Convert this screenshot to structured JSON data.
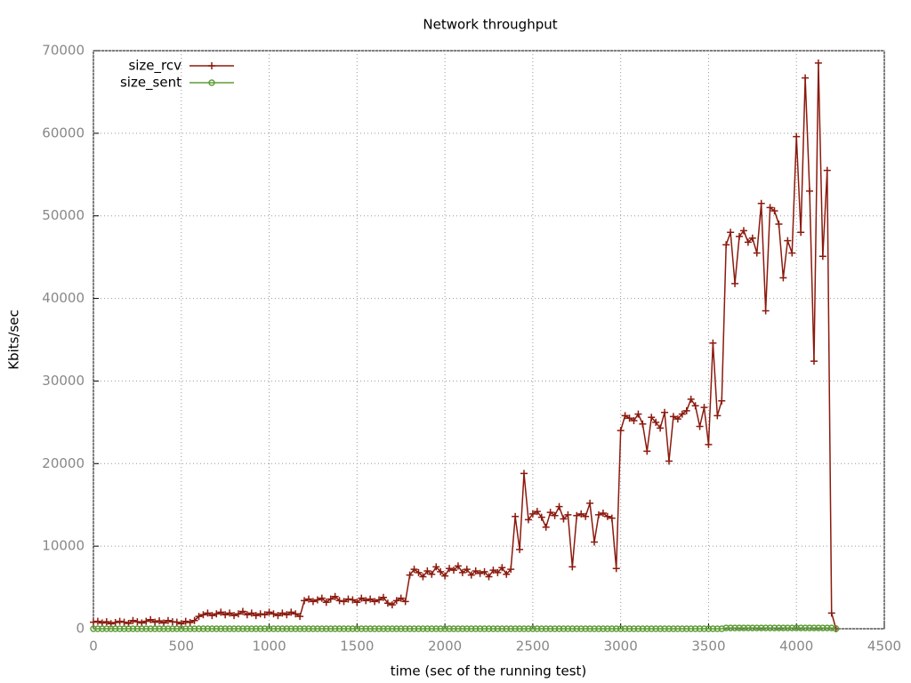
{
  "chart_data": {
    "type": "line",
    "title": "Network throughput",
    "x_label": "time (sec of the running test)",
    "y_label": "Kbits/sec",
    "xlim": [
      0,
      4500
    ],
    "ylim": [
      0,
      70000
    ],
    "xticks": [
      0,
      500,
      1000,
      1500,
      2000,
      2500,
      3000,
      3500,
      4000,
      4500
    ],
    "yticks": [
      0,
      10000,
      20000,
      30000,
      40000,
      50000,
      60000,
      70000
    ],
    "grid": true,
    "legend": "top-left",
    "x": [
      0,
      25,
      50,
      75,
      100,
      125,
      150,
      175,
      200,
      225,
      250,
      275,
      300,
      325,
      350,
      375,
      400,
      425,
      450,
      475,
      500,
      525,
      550,
      575,
      600,
      625,
      650,
      675,
      700,
      725,
      750,
      775,
      800,
      825,
      850,
      875,
      900,
      925,
      950,
      975,
      1000,
      1025,
      1050,
      1075,
      1100,
      1125,
      1150,
      1175,
      1200,
      1225,
      1250,
      1275,
      1300,
      1325,
      1350,
      1375,
      1400,
      1425,
      1450,
      1475,
      1500,
      1525,
      1550,
      1575,
      1600,
      1625,
      1650,
      1675,
      1700,
      1725,
      1750,
      1775,
      1800,
      1825,
      1850,
      1875,
      1900,
      1925,
      1950,
      1975,
      2000,
      2025,
      2050,
      2075,
      2100,
      2125,
      2150,
      2175,
      2200,
      2225,
      2250,
      2275,
      2300,
      2325,
      2350,
      2375,
      2400,
      2425,
      2450,
      2475,
      2500,
      2525,
      2550,
      2575,
      2600,
      2625,
      2650,
      2675,
      2700,
      2725,
      2750,
      2775,
      2800,
      2825,
      2850,
      2875,
      2900,
      2925,
      2950,
      2975,
      3000,
      3025,
      3050,
      3075,
      3100,
      3125,
      3150,
      3175,
      3200,
      3225,
      3250,
      3275,
      3300,
      3325,
      3350,
      3375,
      3400,
      3425,
      3450,
      3475,
      3500,
      3525,
      3550,
      3575,
      3600,
      3625,
      3650,
      3675,
      3700,
      3725,
      3750,
      3775,
      3800,
      3825,
      3850,
      3875,
      3900,
      3925,
      3950,
      3975,
      4000,
      4025,
      4050,
      4075,
      4100,
      4125,
      4150,
      4175,
      4200,
      4225
    ],
    "series": [
      {
        "name": "size_rcv",
        "color": "#8b1a0e",
        "marker": "plus",
        "values": [
          800,
          900,
          700,
          850,
          600,
          750,
          900,
          800,
          650,
          1000,
          850,
          700,
          900,
          1100,
          800,
          950,
          700,
          1000,
          850,
          800,
          600,
          900,
          750,
          1000,
          1500,
          1700,
          1900,
          1600,
          1800,
          2000,
          1700,
          1900,
          1600,
          1800,
          2100,
          1700,
          1900,
          1600,
          1800,
          1700,
          2000,
          1800,
          1600,
          1900,
          1700,
          2000,
          1800,
          1500,
          3400,
          3600,
          3300,
          3500,
          3700,
          3200,
          3600,
          3900,
          3400,
          3300,
          3600,
          3500,
          3200,
          3700,
          3400,
          3600,
          3300,
          3500,
          3800,
          3100,
          2900,
          3400,
          3700,
          3300,
          6500,
          7200,
          6800,
          6300,
          7000,
          6600,
          7500,
          6900,
          6400,
          7300,
          7100,
          7600,
          6800,
          7200,
          6500,
          7000,
          6700,
          6900,
          6300,
          7100,
          6800,
          7400,
          6600,
          7200,
          13600,
          9600,
          18800,
          13200,
          13900,
          14200,
          13500,
          12300,
          14100,
          13700,
          14800,
          13300,
          13800,
          7500,
          13700,
          13900,
          13600,
          15200,
          10500,
          13800,
          14000,
          13600,
          13400,
          7300,
          24000,
          25800,
          25500,
          25200,
          26000,
          24800,
          21500,
          25600,
          25000,
          24300,
          26200,
          20300,
          25700,
          25400,
          26000,
          26400,
          27800,
          27000,
          24500,
          26800,
          22300,
          34600,
          25800,
          27600,
          46500,
          48000,
          41800,
          47500,
          48200,
          46800,
          47300,
          45500,
          51500,
          38500,
          51000,
          50600,
          49000,
          42500,
          47000,
          45500,
          59600,
          48000,
          66700,
          53000,
          32400,
          68500,
          45100,
          55500,
          1900,
          0
        ]
      },
      {
        "name": "size_sent",
        "color": "#5e9c36",
        "marker": "circle",
        "values": [
          0,
          0,
          0,
          0,
          0,
          0,
          0,
          0,
          0,
          0,
          0,
          0,
          0,
          0,
          0,
          0,
          0,
          0,
          0,
          0,
          0,
          0,
          0,
          0,
          0,
          0,
          0,
          0,
          0,
          0,
          0,
          0,
          0,
          0,
          0,
          0,
          0,
          0,
          0,
          0,
          0,
          0,
          0,
          0,
          0,
          0,
          0,
          0,
          0,
          0,
          0,
          0,
          0,
          0,
          0,
          0,
          0,
          0,
          0,
          0,
          0,
          0,
          0,
          0,
          0,
          0,
          0,
          0,
          0,
          0,
          0,
          0,
          0,
          0,
          0,
          0,
          0,
          0,
          0,
          0,
          0,
          0,
          0,
          0,
          0,
          0,
          0,
          0,
          0,
          0,
          0,
          0,
          0,
          0,
          0,
          0,
          0,
          0,
          0,
          0,
          0,
          0,
          0,
          0,
          0,
          0,
          0,
          0,
          0,
          0,
          0,
          0,
          0,
          0,
          0,
          0,
          0,
          0,
          0,
          0,
          0,
          0,
          0,
          0,
          0,
          0,
          0,
          0,
          0,
          0,
          0,
          0,
          0,
          0,
          0,
          0,
          0,
          0,
          0,
          0,
          0,
          0,
          0,
          0,
          100,
          100,
          100,
          100,
          100,
          100,
          100,
          100,
          100,
          100,
          100,
          100,
          100,
          100,
          100,
          100,
          100,
          100,
          100,
          100,
          100,
          100,
          100,
          100,
          100,
          0
        ]
      }
    ]
  }
}
